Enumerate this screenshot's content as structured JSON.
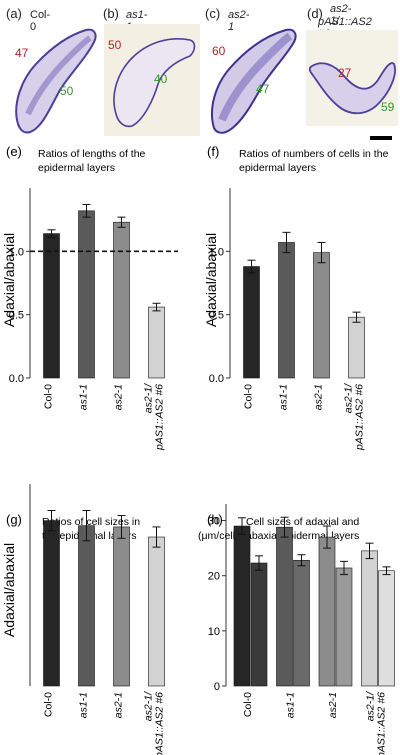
{
  "micrographs": [
    {
      "label": "(a)",
      "title": "Col-0",
      "italic": false,
      "adaxial": "47",
      "abaxial": "50"
    },
    {
      "label": "(b)",
      "title": "as1-1",
      "italic": true,
      "adaxial": "50",
      "abaxial": "40"
    },
    {
      "label": "(c)",
      "title": "as2-1",
      "italic": true,
      "adaxial": "60",
      "abaxial": "47"
    },
    {
      "label": "(d)",
      "title_line1": "as2-1/",
      "title_line2": "pAS1::AS2 #6",
      "italic": true,
      "adaxial": "27",
      "abaxial": "59"
    }
  ],
  "colors": {
    "adaxial_number": "#b8202a",
    "abaxial_number": "#2e9a2e",
    "tissue": "#5a4aa8"
  },
  "chart_data": [
    {
      "panel": "(e)",
      "type": "bar",
      "title_lines": [
        "Ratios of lengths of the",
        "epidermal layers"
      ],
      "ylabel": "Adaxial/abaxial",
      "ylim": [
        0,
        1.5
      ],
      "yticks": [
        "0.0",
        "0.5",
        "1.0"
      ],
      "yticks_values": [
        0,
        0.5,
        1.0
      ],
      "categories": [
        "Col-0",
        "as1-1",
        "as2-1",
        "as2-1/\npAS1::AS2 #6"
      ],
      "values": [
        1.14,
        1.32,
        1.23,
        0.56
      ],
      "errors": [
        0.03,
        0.05,
        0.04,
        0.03
      ],
      "bar_colors": [
        "#262626",
        "#5a5a5a",
        "#8c8c8c",
        "#d2d2d2"
      ],
      "reference_line": 1.0
    },
    {
      "panel": "(f)",
      "type": "bar",
      "title_lines": [
        "Ratios of numbers of cells in the",
        "epidermal layers"
      ],
      "ylabel": "Adaxial/abaxial",
      "ylim": [
        0,
        1.5
      ],
      "yticks": [
        "0.0",
        "0.5",
        "1.0"
      ],
      "yticks_values": [
        0,
        0.5,
        1.0
      ],
      "categories": [
        "Col-0",
        "as1-1",
        "as2-1",
        "as2-1/\npAS1::AS2 #6"
      ],
      "values": [
        0.88,
        1.07,
        0.99,
        0.48
      ],
      "errors": [
        0.05,
        0.08,
        0.08,
        0.04
      ],
      "bar_colors": [
        "#262626",
        "#5a5a5a",
        "#8c8c8c",
        "#d2d2d2"
      ]
    },
    {
      "panel": "(g)",
      "type": "bar",
      "title_lines": [
        "Ratios of cell sizes in",
        "the epidermal layers"
      ],
      "ylabel": "Adaxial/abaxial",
      "ylim": [
        0,
        1.6
      ],
      "yticks": [],
      "yticks_values": [],
      "categories": [
        "Col-0",
        "as1-1",
        "as2-1",
        "as2-1/\npAS1::AS2 #6"
      ],
      "values": [
        1.31,
        1.27,
        1.26,
        1.18
      ],
      "errors": [
        0.08,
        0.12,
        0.09,
        0.08
      ],
      "bar_colors": [
        "#262626",
        "#5a5a5a",
        "#8c8c8c",
        "#d2d2d2"
      ]
    },
    {
      "panel": "(h)",
      "type": "bar",
      "title_lines": [
        "Cell sizes of adaxial and",
        "abaxial epidermal layers"
      ],
      "ylabel": "(μm/cell)",
      "ylim": [
        0,
        33
      ],
      "yticks": [
        "0",
        "10",
        "20",
        "30"
      ],
      "yticks_values": [
        0,
        10,
        20,
        30
      ],
      "categories": [
        "Col-0",
        "as1-1",
        "as2-1",
        "as2-1/\npAS1::AS2 #6"
      ],
      "series": [
        {
          "values": [
            29.0,
            28.8,
            27.0,
            24.5
          ],
          "errors": [
            1.5,
            1.8,
            2.0,
            1.4
          ]
        },
        {
          "values": [
            22.3,
            22.8,
            21.4,
            20.9
          ],
          "errors": [
            1.3,
            1.0,
            1.2,
            0.7
          ]
        }
      ],
      "bar_colors": [
        [
          "#262626",
          "#3a3a3a"
        ],
        [
          "#5a5a5a",
          "#6a6a6a"
        ],
        [
          "#8c8c8c",
          "#9a9a9a"
        ],
        [
          "#d2d2d2",
          "#dedede"
        ]
      ]
    }
  ]
}
